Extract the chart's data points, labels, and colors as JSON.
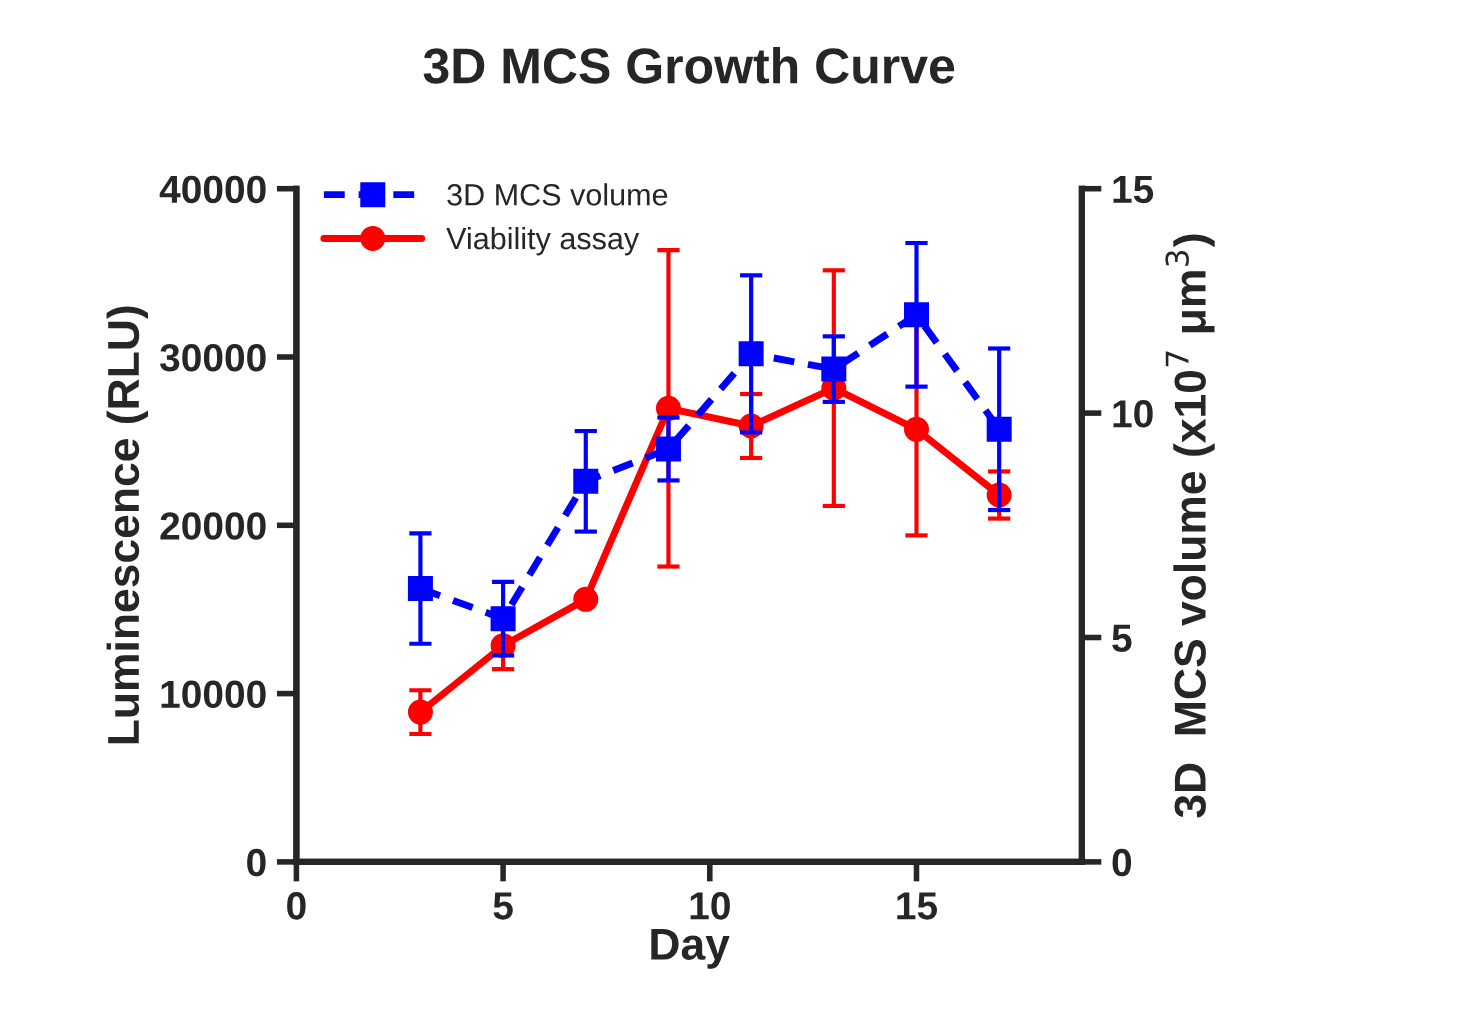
{
  "chart_data": {
    "type": "line",
    "title": "3D MCS Growth Curve",
    "xlabel": "Day",
    "ylabel": "Luminescence (RLU)",
    "y2label": "3D  MCS volume (x10$^{7}$ μm$^{3}$)",
    "x": [
      3,
      5,
      7,
      9,
      11,
      13,
      15,
      17
    ],
    "series": [
      {
        "name": "3D MCS volume",
        "color": "#0000ff",
        "axis": "y2",
        "marker": "square",
        "line_style": "dashed",
        "values": [
          6.09,
          5.42,
          8.48,
          9.2,
          11.32,
          10.98,
          12.19,
          9.64
        ],
        "errors": [
          1.23,
          0.82,
          1.12,
          0.7,
          1.75,
          0.73,
          1.6,
          1.8
        ]
      },
      {
        "name": "Viability assay",
        "color": "#ff0000",
        "marker": "circle",
        "line_style": "solid",
        "values": [
          8900,
          12850,
          15600,
          26950,
          25900,
          28150,
          25700,
          21800
        ],
        "errors": [
          1300,
          1400,
          null,
          9400,
          1900,
          7000,
          6300,
          1400
        ]
      }
    ],
    "xlim": [
      0,
      19
    ],
    "xticks": [
      0,
      5,
      10,
      15
    ],
    "ylim": [
      0,
      40000
    ],
    "yticks": [
      0,
      10000,
      20000,
      30000,
      40000
    ],
    "y2lim": [
      0,
      15
    ],
    "y2ticks": [
      0,
      5,
      10,
      15
    ],
    "grid": false,
    "legend": "top left"
  }
}
